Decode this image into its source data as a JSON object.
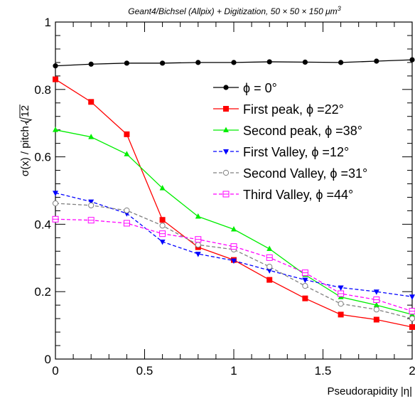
{
  "chart_data": {
    "type": "line",
    "title": "Geant4/Bichsel (Allpix) + Digitization, 50 × 50 × 150 μm",
    "title_superscript": "3",
    "xlabel": "Pseudorapidity |η|",
    "ylabel_main": "σ(x) / pitch / ",
    "ylabel_sqrt": "12",
    "xlim": [
      0,
      2
    ],
    "ylim": [
      0,
      1
    ],
    "x_ticks": [
      {
        "value": 0,
        "label": "0"
      },
      {
        "value": 0.5,
        "label": "0.5"
      },
      {
        "value": 1,
        "label": "1"
      },
      {
        "value": 1.5,
        "label": "1.5"
      },
      {
        "value": 2,
        "label": "2"
      }
    ],
    "y_ticks": [
      {
        "value": 0,
        "label": "0"
      },
      {
        "value": 0.2,
        "label": "0.2"
      },
      {
        "value": 0.4,
        "label": "0.4"
      },
      {
        "value": 0.6,
        "label": "0.6"
      },
      {
        "value": 0.8,
        "label": "0.8"
      },
      {
        "value": 1,
        "label": "1"
      }
    ],
    "grid": false,
    "legend_position": "top-right",
    "x": [
      0,
      0.2,
      0.4,
      0.6,
      0.8,
      1.0,
      1.2,
      1.4,
      1.6,
      1.8,
      2.0
    ],
    "series": [
      {
        "name": "ϕ = 0°",
        "color": "#000000",
        "marker": "circle-filled",
        "dash": "solid",
        "values": [
          0.87,
          0.875,
          0.878,
          0.878,
          0.88,
          0.88,
          0.882,
          0.881,
          0.88,
          0.884,
          0.888
        ]
      },
      {
        "name": "First peak, ϕ =22°",
        "color": "#ff0000",
        "marker": "square-filled",
        "dash": "solid",
        "values": [
          0.83,
          0.763,
          0.667,
          0.413,
          0.332,
          0.294,
          0.235,
          0.18,
          0.132,
          0.117,
          0.095
        ]
      },
      {
        "name": "Second peak, ϕ =38°",
        "color": "#00ee00",
        "marker": "triangle-up-filled",
        "dash": "solid",
        "values": [
          0.68,
          0.659,
          0.608,
          0.507,
          0.423,
          0.385,
          0.327,
          0.25,
          0.184,
          0.16,
          0.132
        ]
      },
      {
        "name": "First Valley, ϕ =12°",
        "color": "#0000ff",
        "marker": "triangle-down-filled",
        "dash": "dashed",
        "values": [
          0.493,
          0.467,
          0.432,
          0.348,
          0.312,
          0.292,
          0.263,
          0.235,
          0.212,
          0.2,
          0.185
        ]
      },
      {
        "name": "Second Valley, ϕ =31°",
        "color": "#808080",
        "marker": "circle-open",
        "dash": "dashed",
        "values": [
          0.462,
          0.456,
          0.441,
          0.396,
          0.339,
          0.325,
          0.274,
          0.217,
          0.164,
          0.147,
          0.12
        ]
      },
      {
        "name": "Third Valley, ϕ =44°",
        "color": "#ff00ff",
        "marker": "square-open",
        "dash": "dashed",
        "values": [
          0.415,
          0.412,
          0.403,
          0.372,
          0.355,
          0.334,
          0.301,
          0.256,
          0.194,
          0.176,
          0.142
        ]
      }
    ]
  }
}
